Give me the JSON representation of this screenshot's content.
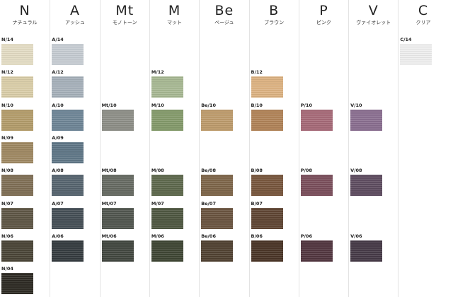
{
  "columns": [
    {
      "letter": "N",
      "subtitle": "ナチュラル",
      "swatches": [
        {
          "code": "N/14",
          "level": 14,
          "color": "#e3dcc4"
        },
        {
          "code": "N/12",
          "level": 12,
          "color": "#d9cda8"
        },
        {
          "code": "N/10",
          "level": 10,
          "color": "#b39c6b"
        },
        {
          "code": "N/09",
          "level": 9,
          "color": "#9e8862"
        },
        {
          "code": "N/08",
          "level": 8,
          "color": "#7f6f55"
        },
        {
          "code": "N/07",
          "level": 7,
          "color": "#5e5645"
        },
        {
          "code": "N/06",
          "level": 6,
          "color": "#4a4537"
        },
        {
          "code": "N/04",
          "level": 4,
          "color": "#2e2b24"
        }
      ]
    },
    {
      "letter": "A",
      "subtitle": "アッシュ",
      "swatches": [
        {
          "code": "A/14",
          "level": 14,
          "color": "#c6ccd2"
        },
        {
          "code": "A/12",
          "level": 12,
          "color": "#a6b0ba"
        },
        {
          "code": "A/10",
          "level": 10,
          "color": "#6e8596"
        },
        {
          "code": "A/09",
          "level": 9,
          "color": "#5f7686"
        },
        {
          "code": "A/08",
          "level": 8,
          "color": "#56646f"
        },
        {
          "code": "A/07",
          "level": 7,
          "color": "#454f56"
        },
        {
          "code": "A/06",
          "level": 6,
          "color": "#353c40"
        }
      ]
    },
    {
      "letter": "Mt",
      "subtitle": "モノトーン",
      "swatches": [
        {
          "code": "Mt/10",
          "level": 10,
          "color": "#8d8e87"
        },
        {
          "code": "Mt/08",
          "level": 8,
          "color": "#666a62"
        },
        {
          "code": "Mt/07",
          "level": 7,
          "color": "#51564f"
        },
        {
          "code": "Mt/06",
          "level": 6,
          "color": "#424740"
        }
      ]
    },
    {
      "letter": "M",
      "subtitle": "マット",
      "swatches": [
        {
          "code": "M/12",
          "level": 12,
          "color": "#a7b893"
        },
        {
          "code": "M/10",
          "level": 10,
          "color": "#849a6b"
        },
        {
          "code": "M/08",
          "level": 8,
          "color": "#5d684c"
        },
        {
          "code": "M/07",
          "level": 7,
          "color": "#4e5741"
        },
        {
          "code": "M/06",
          "level": 6,
          "color": "#3f4634"
        }
      ]
    },
    {
      "letter": "Be",
      "subtitle": "ベージュ",
      "swatches": [
        {
          "code": "Be/10",
          "level": 10,
          "color": "#bd9b6c"
        },
        {
          "code": "Be/08",
          "level": 8,
          "color": "#7d6549"
        },
        {
          "code": "Be/07",
          "level": 7,
          "color": "#6a5440"
        },
        {
          "code": "Be/06",
          "level": 6,
          "color": "#514232"
        }
      ]
    },
    {
      "letter": "B",
      "subtitle": "ブラウン",
      "swatches": [
        {
          "code": "B/12",
          "level": 12,
          "color": "#dcb282"
        },
        {
          "code": "B/10",
          "level": 10,
          "color": "#b08358"
        },
        {
          "code": "B/08",
          "level": 8,
          "color": "#77563d"
        },
        {
          "code": "B/07",
          "level": 7,
          "color": "#5f4533"
        },
        {
          "code": "B/06",
          "level": 6,
          "color": "#4a3527"
        }
      ]
    },
    {
      "letter": "P",
      "subtitle": "ピンク",
      "swatches": [
        {
          "code": "P/10",
          "level": 10,
          "color": "#a66a78"
        },
        {
          "code": "P/08",
          "level": 8,
          "color": "#7a4e5b"
        },
        {
          "code": "P/06",
          "level": 6,
          "color": "#523640"
        }
      ]
    },
    {
      "letter": "V",
      "subtitle": "ヴァイオレット",
      "swatches": [
        {
          "code": "V/10",
          "level": 10,
          "color": "#8a6f90"
        },
        {
          "code": "V/08",
          "level": 8,
          "color": "#5e4c60"
        },
        {
          "code": "V/06",
          "level": 6,
          "color": "#463a47"
        }
      ]
    },
    {
      "letter": "C",
      "subtitle": "クリア",
      "swatches": [
        {
          "code": "C/14",
          "level": 14,
          "color": "#eeeeee"
        }
      ]
    }
  ]
}
